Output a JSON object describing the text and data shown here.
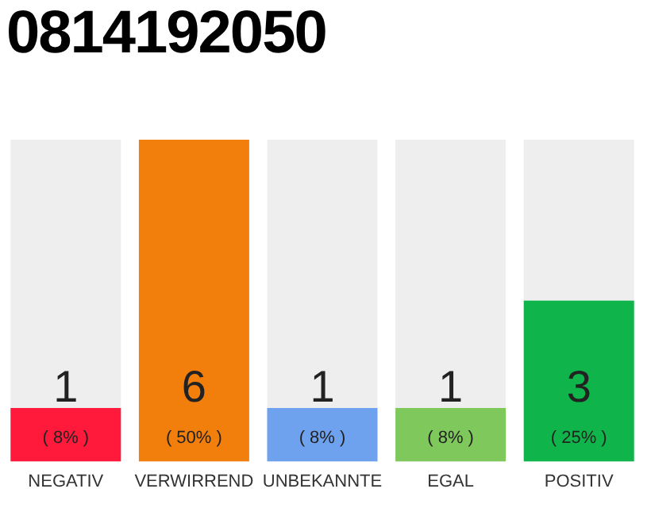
{
  "chart_data": {
    "type": "bar",
    "title": "0814192050",
    "categories": [
      "NEGATIV",
      "VERWIRREND",
      "UNBEKANNTE",
      "EGAL",
      "POSITIV"
    ],
    "values": [
      1,
      6,
      1,
      1,
      3
    ],
    "colors": [
      "#ff1a3c",
      "#f27e0c",
      "#6ea2ee",
      "#7ec85c",
      "#0fb54a"
    ],
    "data_labels": true,
    "annotations": [
      "( 8% )",
      "( 50% )",
      "( 8% )",
      "( 8% )",
      "( 25% )"
    ],
    "grid": false,
    "legend": false
  }
}
